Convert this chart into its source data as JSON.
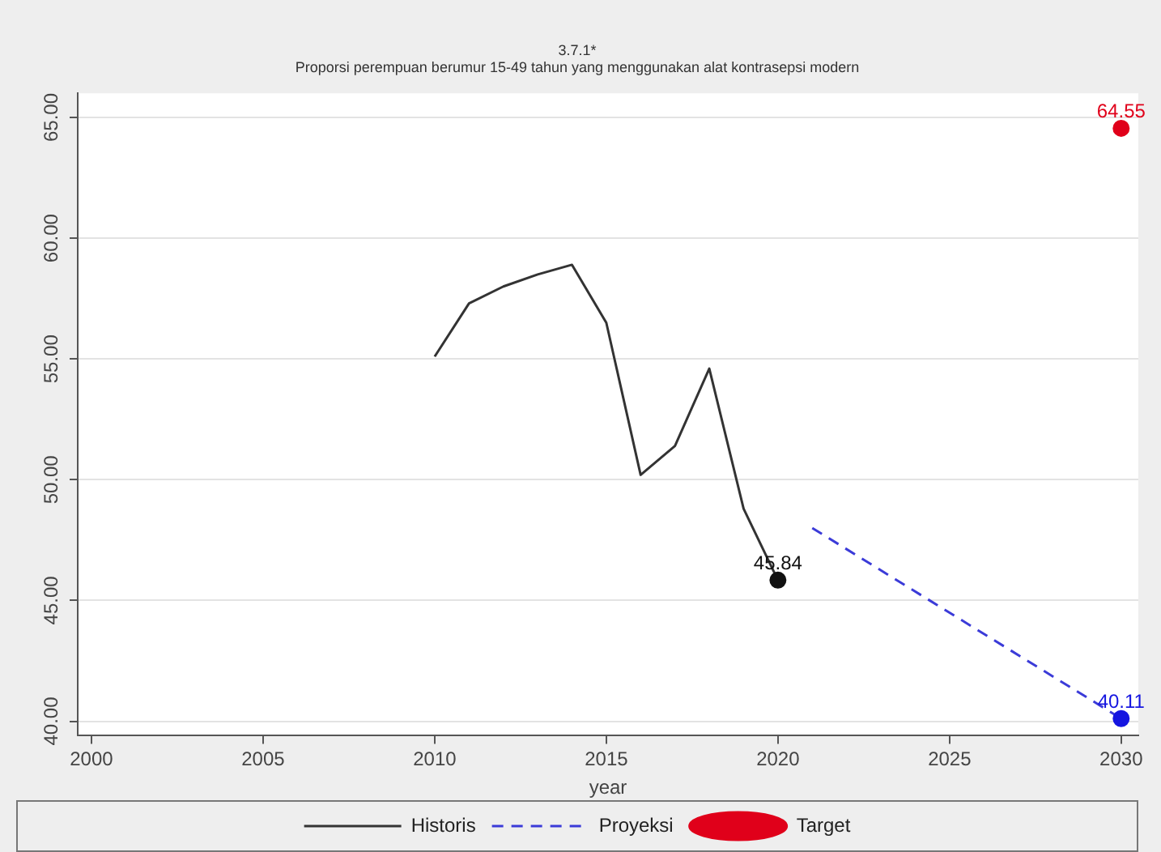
{
  "chart_data": {
    "type": "line",
    "title": "3.7.1*",
    "subtitle": "Proporsi perempuan berumur 15-49 tahun yang menggunakan alat kontrasepsi modern",
    "xlabel": "year",
    "xlim": [
      1999.6,
      2030.5
    ],
    "xticks": [
      2000,
      2005,
      2010,
      2015,
      2020,
      2025,
      2030
    ],
    "ylim": [
      39.4,
      66
    ],
    "yticks": [
      {
        "value": 40,
        "label": "40.00"
      },
      {
        "value": 45,
        "label": "45.00"
      },
      {
        "value": 50,
        "label": "50.00"
      },
      {
        "value": 55,
        "label": "55.00"
      },
      {
        "value": 60,
        "label": "60.00"
      },
      {
        "value": 65,
        "label": "65.00"
      }
    ],
    "grid": "y",
    "legend": "bottom",
    "series": [
      {
        "name": "Historis",
        "type": "line",
        "color": "#333333",
        "marker": "none",
        "line_style": "solid",
        "x": [
          2010,
          2011,
          2012,
          2013,
          2014,
          2015,
          2016,
          2017,
          2018,
          2019,
          2020
        ],
        "values": [
          55.1,
          57.3,
          58.0,
          58.5,
          58.9,
          56.5,
          50.2,
          51.4,
          54.6,
          48.8,
          45.84
        ]
      },
      {
        "name": "Proyeksi",
        "type": "line",
        "color": "#3b3bd8",
        "marker": "none",
        "line_style": "dashed",
        "x": [
          2021,
          2030
        ],
        "values": [
          48.0,
          40.11
        ]
      },
      {
        "name": "Target",
        "type": "scatter",
        "color": "#e0001a",
        "marker": "circle",
        "x": [
          2030
        ],
        "values": [
          64.55
        ],
        "value_labels": [
          "64.55"
        ]
      },
      {
        "type": "scatter",
        "color": "#111111",
        "marker": "circle",
        "x": [
          2020
        ],
        "values": [
          45.84
        ],
        "value_labels": [
          "45.84"
        ]
      },
      {
        "type": "scatter",
        "color": "#1515e0",
        "marker": "circle",
        "x": [
          2030
        ],
        "values": [
          40.11
        ],
        "value_labels": [
          "40.11"
        ]
      }
    ]
  }
}
